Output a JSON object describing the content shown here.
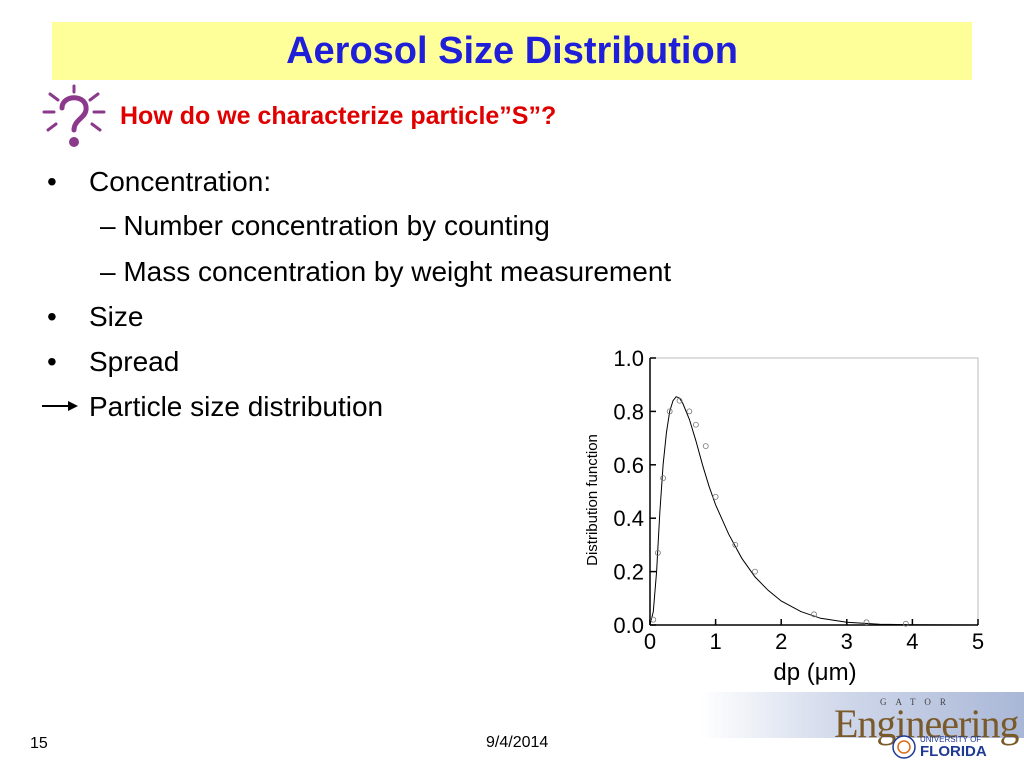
{
  "slide": {
    "title": "Aerosol Size Distribution",
    "subtitle": "How do we characterize particle”S”?",
    "bullets": [
      "Concentration:",
      "– Number concentration by counting",
      "– Mass concentration by weight measurement",
      "Size",
      "Spread",
      "Particle size distribution"
    ],
    "bullet_symbol": "•",
    "slide_number": "15",
    "date": "9/4/2014"
  },
  "chart_data": {
    "type": "line",
    "ylabel": "Distribution function",
    "xlabel": "dp (μm)",
    "xticks": [
      "0",
      "1",
      "2",
      "3",
      "4",
      "5"
    ],
    "yticks": [
      "0.0",
      "0.2",
      "0.4",
      "0.6",
      "0.8",
      "1.0"
    ],
    "xlim": [
      0,
      5
    ],
    "ylim": [
      0,
      1.0
    ],
    "curve": {
      "x": [
        0,
        0.05,
        0.1,
        0.15,
        0.2,
        0.25,
        0.3,
        0.35,
        0.4,
        0.45,
        0.5,
        0.6,
        0.7,
        0.8,
        0.9,
        1.0,
        1.2,
        1.4,
        1.6,
        1.8,
        2.0,
        2.3,
        2.6,
        3.0,
        3.5,
        4.0,
        5.0
      ],
      "y": [
        0.0,
        0.05,
        0.2,
        0.42,
        0.6,
        0.72,
        0.8,
        0.84,
        0.855,
        0.85,
        0.83,
        0.77,
        0.69,
        0.6,
        0.52,
        0.45,
        0.34,
        0.25,
        0.18,
        0.13,
        0.09,
        0.05,
        0.025,
        0.01,
        0.003,
        0.001,
        0.0
      ]
    },
    "points": {
      "x": [
        0.05,
        0.12,
        0.2,
        0.3,
        0.45,
        0.6,
        0.7,
        0.85,
        1.0,
        1.3,
        1.6,
        2.5,
        3.3,
        3.9
      ],
      "y": [
        0.02,
        0.27,
        0.55,
        0.8,
        0.84,
        0.8,
        0.75,
        0.67,
        0.48,
        0.3,
        0.2,
        0.04,
        0.01,
        0.005
      ]
    },
    "grid": false
  },
  "logo": {
    "gator": "GATOR",
    "engineering": "Engineering",
    "university_of": "UNIVERSITY OF",
    "florida": "FLORIDA"
  },
  "colors": {
    "title": "#1f1fd9",
    "title_band": "#ffff99",
    "subtitle": "#e00000",
    "icon": "#8b3a8b"
  },
  "icons": [
    "question-thinker-icon",
    "right-arrow-icon"
  ]
}
